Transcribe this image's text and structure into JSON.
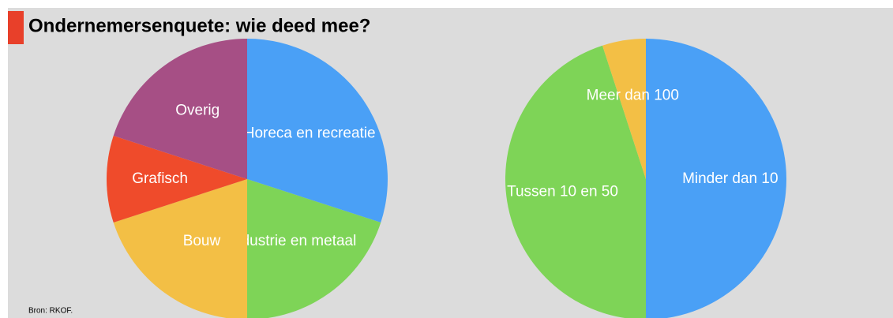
{
  "title": "Ondernemersenquete: wie deed mee?",
  "source": "Bron: RKOF.",
  "chart_data": [
    {
      "type": "pie",
      "categories": [
        "Horeca en recreatie",
        "Industrie en metaal",
        "Bouw",
        "Grafisch",
        "Overig"
      ],
      "values": [
        30,
        20,
        20,
        10,
        20
      ],
      "colors": [
        "#4aa0f6",
        "#7ed457",
        "#f3bf45",
        "#ef4b2b",
        "#a64f85"
      ]
    },
    {
      "type": "pie",
      "categories": [
        "Minder dan 10",
        "Tussen 10 en 50",
        "Meer dan 100"
      ],
      "values": [
        50,
        45,
        5
      ],
      "colors": [
        "#4aa0f6",
        "#7ed457",
        "#f3bf45"
      ]
    }
  ]
}
